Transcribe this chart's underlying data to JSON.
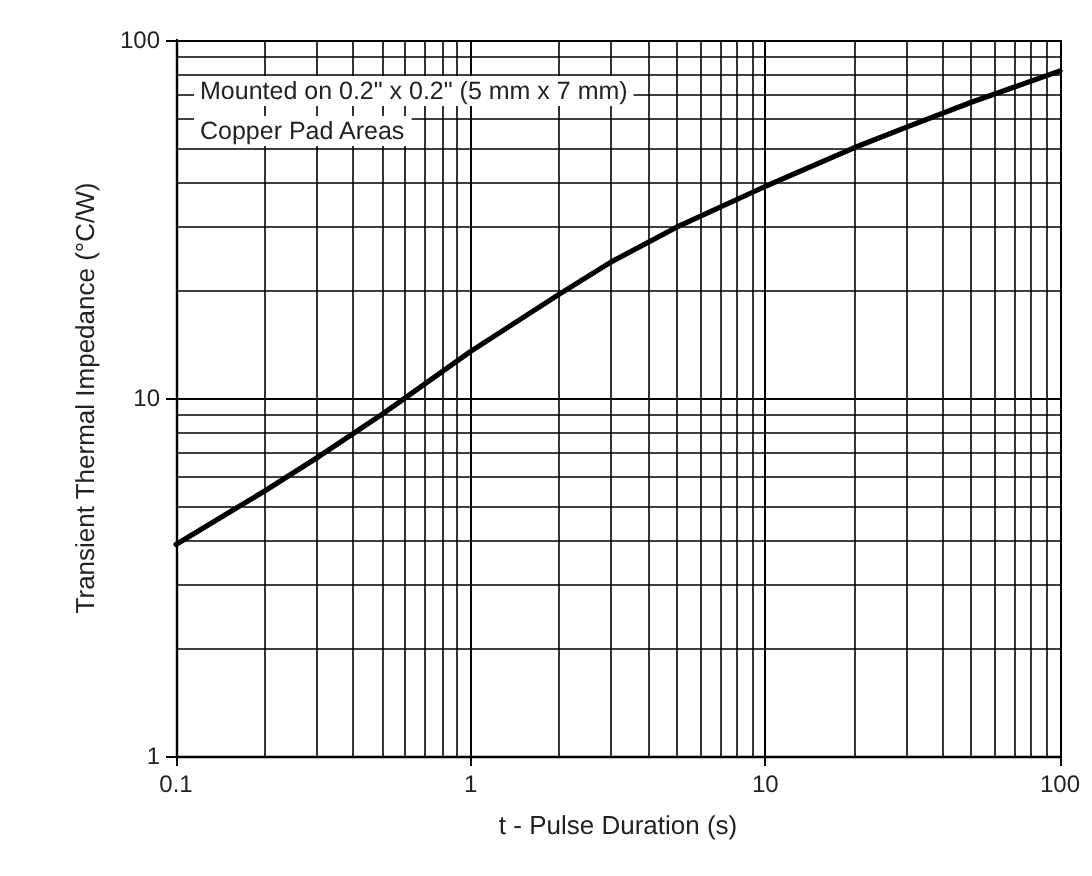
{
  "chart_data": {
    "type": "line",
    "xlabel": "t - Pulse Duration (s)",
    "ylabel": "Transient Thermal Impedance (°C/W)",
    "annotations": [
      "Mounted on 0.2\" x 0.2\" (5 mm x 7 mm)",
      "Copper Pad Areas"
    ],
    "x": [
      0.1,
      0.2,
      0.3,
      0.5,
      1,
      2,
      3,
      5,
      10,
      20,
      30,
      50,
      100
    ],
    "series": [
      {
        "color": "#000000",
        "values": [
          3.9,
          5.5,
          6.8,
          9,
          13.5,
          19.5,
          24,
          30,
          39,
          50,
          57,
          67,
          82
        ]
      }
    ],
    "log": "xy",
    "xlim": [
      0.1,
      100
    ],
    "ylim": [
      1,
      100
    ],
    "xticks": [
      0.1,
      1,
      10,
      100
    ],
    "yticks": [
      1,
      10,
      100
    ],
    "grid": true,
    "marker": "none",
    "line_style": "solid"
  }
}
